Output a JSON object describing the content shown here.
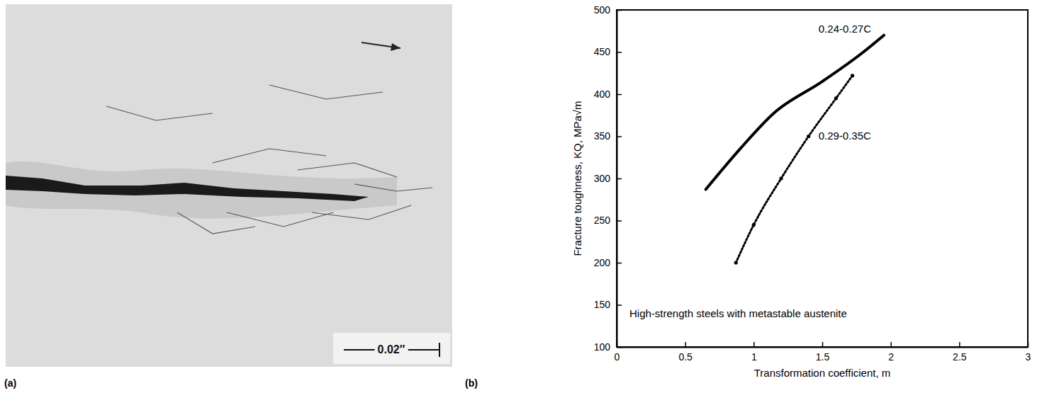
{
  "panel_a": {
    "label": "(a)",
    "scale_bar": "0.02″"
  },
  "chart_data": {
    "type": "line",
    "panel_label": "(b)",
    "annotation": "High-strength steels with metastable austenite",
    "x_label": "Transformation coefficient, m",
    "y_label": "Fracture toughness, KQ, MPa√m",
    "xlim": [
      0,
      3
    ],
    "xticks": [
      0,
      0.5,
      1,
      1.5,
      2,
      2.5,
      3
    ],
    "ylim": [
      100,
      500
    ],
    "yticks": [
      100,
      150,
      200,
      250,
      300,
      350,
      400,
      450,
      500
    ],
    "series": [
      {
        "name": "0.24-0.27C",
        "color": "#000000",
        "line_style": "solid",
        "marker": "none",
        "x": [
          0.65,
          0.9,
          1.15,
          1.5,
          1.8,
          1.95
        ],
        "values": [
          287,
          335,
          378,
          415,
          450,
          470
        ]
      },
      {
        "name": "0.29-0.35C",
        "color": "#000000",
        "line_style": "dotted",
        "marker": "circle",
        "x": [
          0.87,
          1.0,
          1.2,
          1.4,
          1.6,
          1.72
        ],
        "values": [
          200,
          245,
          300,
          350,
          395,
          422
        ]
      }
    ]
  }
}
